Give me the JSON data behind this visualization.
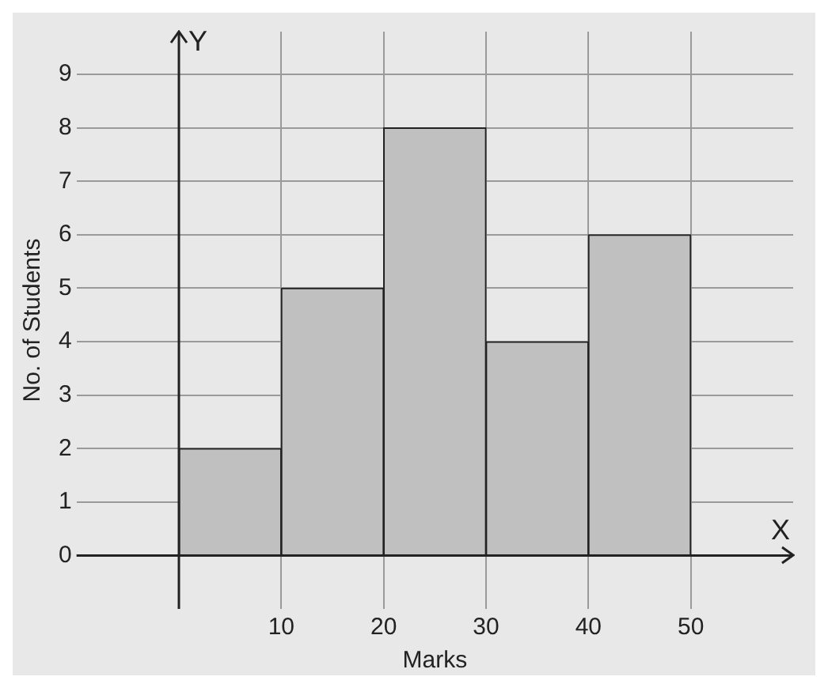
{
  "chart_data": {
    "type": "histogram",
    "xlabel": "Marks",
    "ylabel": "No. of Students",
    "bins": [
      0,
      10,
      20,
      30,
      40,
      50
    ],
    "values": [
      2,
      5,
      8,
      4,
      6
    ],
    "color": "#c0c0c0",
    "xlim": [
      -10,
      60
    ],
    "ylim": [
      -1,
      9.8
    ],
    "xticks": [
      10,
      20,
      30,
      40,
      50
    ],
    "yticks": [
      0,
      1,
      2,
      3,
      4,
      5,
      6,
      7,
      8,
      9
    ],
    "grid": true,
    "annotations": [
      "X",
      "Y"
    ]
  }
}
